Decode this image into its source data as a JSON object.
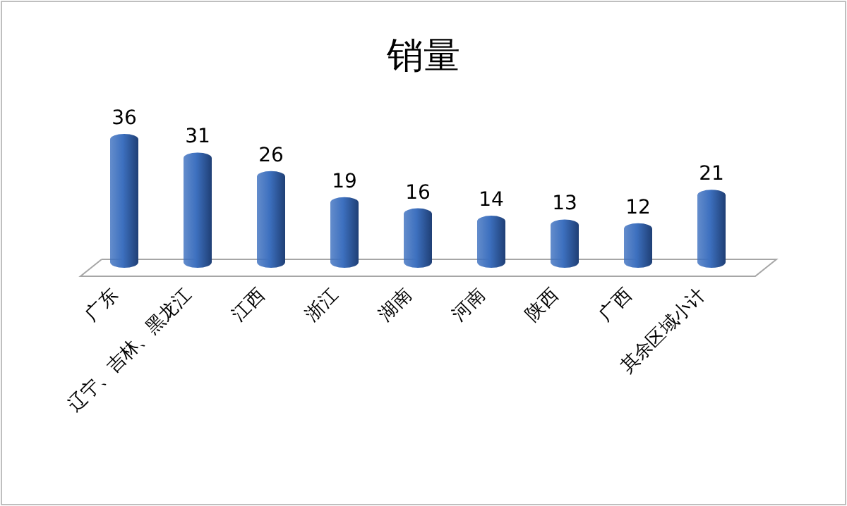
{
  "chart_data": {
    "type": "bar",
    "title": "销量",
    "data_labels": true,
    "categories": [
      "广东",
      "辽宁、吉林、黑龙江",
      "江西",
      "浙江",
      "湖南",
      "河南",
      "陕西",
      "广西",
      "其余区域小计"
    ],
    "values": [
      36,
      31,
      26,
      19,
      16,
      14,
      13,
      12,
      21
    ],
    "color": "#3d70bf"
  }
}
